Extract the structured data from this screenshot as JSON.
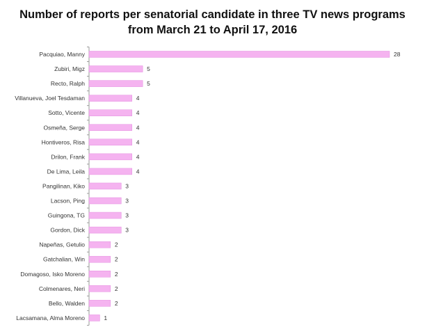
{
  "chart_data": {
    "type": "bar",
    "orientation": "horizontal",
    "title_line1": "Number of reports per senatorial candidate in three TV news programs",
    "title_line2": "from March 21 to April 17, 2016",
    "categories": [
      "Pacquiao, Manny",
      "Zubiri, Migz",
      "Recto, Ralph",
      "Villanueva, Joel Tesdaman",
      "Sotto, Vicente",
      "Osmeña, Serge",
      "Hontiveros, Risa",
      "Drilon, Frank",
      "De Lima, Leila",
      "Pangilinan, Kiko",
      "Lacson, Ping",
      "Guingona, TG",
      "Gordon, Dick",
      "Napeñas, Getulio",
      "Gatchalian, Win",
      "Domagoso, Isko Moreno",
      "Colmenares, Neri",
      "Bello, Walden",
      "Lacsamana, Alma Moreno"
    ],
    "values": [
      28,
      5,
      5,
      4,
      4,
      4,
      4,
      4,
      4,
      3,
      3,
      3,
      3,
      2,
      2,
      2,
      2,
      2,
      1
    ],
    "xlim": [
      0,
      28
    ],
    "bar_color": "#f5b3f0",
    "bar_stroke": "#e48ee0",
    "axis_color": "#9a9a9a",
    "grid": false,
    "legend": "none"
  }
}
